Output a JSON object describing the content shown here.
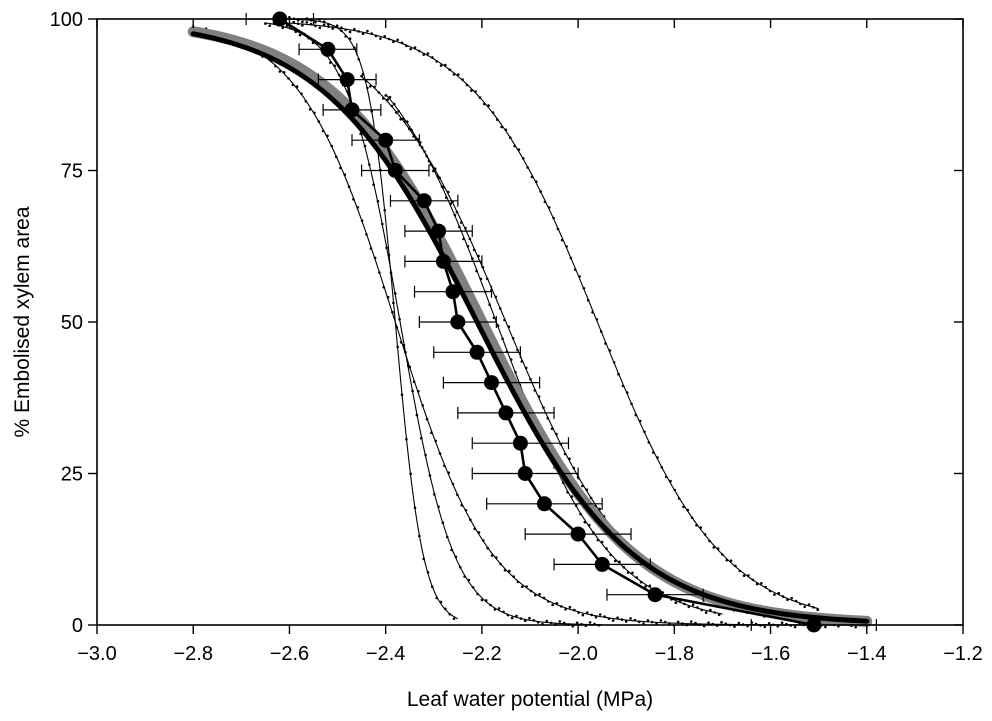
{
  "chart_data": {
    "type": "scatter",
    "xlabel": "Leaf water potential (MPa)",
    "ylabel": "% Embolised xylem area",
    "xlim": [
      -3.0,
      -1.2
    ],
    "ylim": [
      0,
      100
    ],
    "x_ticks": [
      -3.0,
      -2.8,
      -2.6,
      -2.4,
      -2.2,
      -2.0,
      -1.8,
      -1.6,
      -1.4,
      -1.2
    ],
    "x_tick_labels": [
      "−3.0",
      "−2.8",
      "−2.6",
      "−2.4",
      "−2.2",
      "−2.0",
      "−1.8",
      "−1.6",
      "−1.4",
      "−1.2"
    ],
    "y_ticks": [
      0,
      25,
      50,
      75,
      100
    ],
    "y_tick_labels": [
      "0",
      "25",
      "50",
      "75",
      "100"
    ],
    "grid": false,
    "series": [
      {
        "kind": "mean_points_with_xerror",
        "color": "#000000",
        "points": [
          {
            "x": -2.62,
            "y": 100,
            "xerr": 0.07
          },
          {
            "x": -2.52,
            "y": 95,
            "xerr": 0.06
          },
          {
            "x": -2.48,
            "y": 90,
            "xerr": 0.06
          },
          {
            "x": -2.47,
            "y": 85,
            "xerr": 0.06
          },
          {
            "x": -2.4,
            "y": 80,
            "xerr": 0.07
          },
          {
            "x": -2.38,
            "y": 75,
            "xerr": 0.07
          },
          {
            "x": -2.32,
            "y": 70,
            "xerr": 0.07
          },
          {
            "x": -2.29,
            "y": 65,
            "xerr": 0.07
          },
          {
            "x": -2.28,
            "y": 60,
            "xerr": 0.08
          },
          {
            "x": -2.26,
            "y": 55,
            "xerr": 0.08
          },
          {
            "x": -2.25,
            "y": 50,
            "xerr": 0.08
          },
          {
            "x": -2.21,
            "y": 45,
            "xerr": 0.09
          },
          {
            "x": -2.18,
            "y": 40,
            "xerr": 0.1
          },
          {
            "x": -2.15,
            "y": 35,
            "xerr": 0.1
          },
          {
            "x": -2.12,
            "y": 30,
            "xerr": 0.1
          },
          {
            "x": -2.11,
            "y": 25,
            "xerr": 0.11
          },
          {
            "x": -2.07,
            "y": 20,
            "xerr": 0.12
          },
          {
            "x": -2.0,
            "y": 15,
            "xerr": 0.11
          },
          {
            "x": -1.95,
            "y": 10,
            "xerr": 0.1
          },
          {
            "x": -1.84,
            "y": 5,
            "xerr": 0.1
          },
          {
            "x": -1.51,
            "y": 0,
            "xerr": 0.13
          }
        ]
      },
      {
        "kind": "mean_fit",
        "color": "#000000",
        "x_range": [
          -2.8,
          -1.4
        ],
        "p50": -2.21,
        "slope": 6.25
      },
      {
        "kind": "alt_fit",
        "color": "#808080",
        "x_range": [
          -2.8,
          -1.4
        ],
        "p50": -2.2,
        "slope": 6.4
      },
      {
        "kind": "individual_fits",
        "color": "#000000",
        "curves": [
          {
            "p50": -2.38,
            "slope": 35,
            "x_range": [
              -2.6,
              -2.25
            ]
          },
          {
            "p50": -2.37,
            "slope": 18,
            "x_range": [
              -2.65,
              -1.95
            ]
          },
          {
            "p50": -2.38,
            "slope": 10,
            "x_range": [
              -2.8,
              -1.4
            ]
          },
          {
            "p50": -2.17,
            "slope": 8.5,
            "x_range": [
              -2.4,
              -1.7
            ]
          },
          {
            "p50": -2.15,
            "slope": 7.5,
            "x_range": [
              -2.45,
              -1.6
            ]
          },
          {
            "p50": -1.96,
            "slope": 7.8,
            "x_range": [
              -2.6,
              -1.5
            ]
          }
        ]
      }
    ]
  }
}
